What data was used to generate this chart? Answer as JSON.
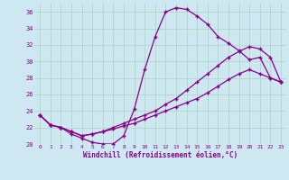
{
  "xlabel": "Windchill (Refroidissement éolien,°C)",
  "ylabel": "",
  "bg_color": "#cde8f0",
  "grid_color": "#b0d8c8",
  "line_color": "#880088",
  "xlim": [
    -0.5,
    23.5
  ],
  "ylim": [
    20,
    37
  ],
  "yticks": [
    20,
    22,
    24,
    26,
    28,
    30,
    32,
    34,
    36
  ],
  "xticks": [
    0,
    1,
    2,
    3,
    4,
    5,
    6,
    7,
    8,
    9,
    10,
    11,
    12,
    13,
    14,
    15,
    16,
    17,
    18,
    19,
    20,
    21,
    22,
    23
  ],
  "line1": [
    23.5,
    22.3,
    22.0,
    21.2,
    20.7,
    20.2,
    20.0,
    20.0,
    21.0,
    24.2,
    29.0,
    33.0,
    36.0,
    36.5,
    36.3,
    35.5,
    34.5,
    33.0,
    32.2,
    31.3,
    30.2,
    30.5,
    28.0,
    27.5
  ],
  "line2": [
    23.5,
    22.3,
    22.0,
    21.5,
    21.0,
    21.2,
    21.5,
    22.0,
    22.5,
    23.0,
    23.5,
    24.0,
    24.8,
    25.5,
    26.5,
    27.5,
    28.5,
    29.5,
    30.5,
    31.2,
    31.8,
    31.5,
    30.5,
    27.5
  ],
  "line3": [
    23.5,
    22.3,
    22.0,
    21.5,
    21.0,
    21.2,
    21.5,
    21.8,
    22.2,
    22.5,
    23.0,
    23.5,
    24.0,
    24.5,
    25.0,
    25.5,
    26.2,
    27.0,
    27.8,
    28.5,
    29.0,
    28.5,
    28.0,
    27.5
  ]
}
